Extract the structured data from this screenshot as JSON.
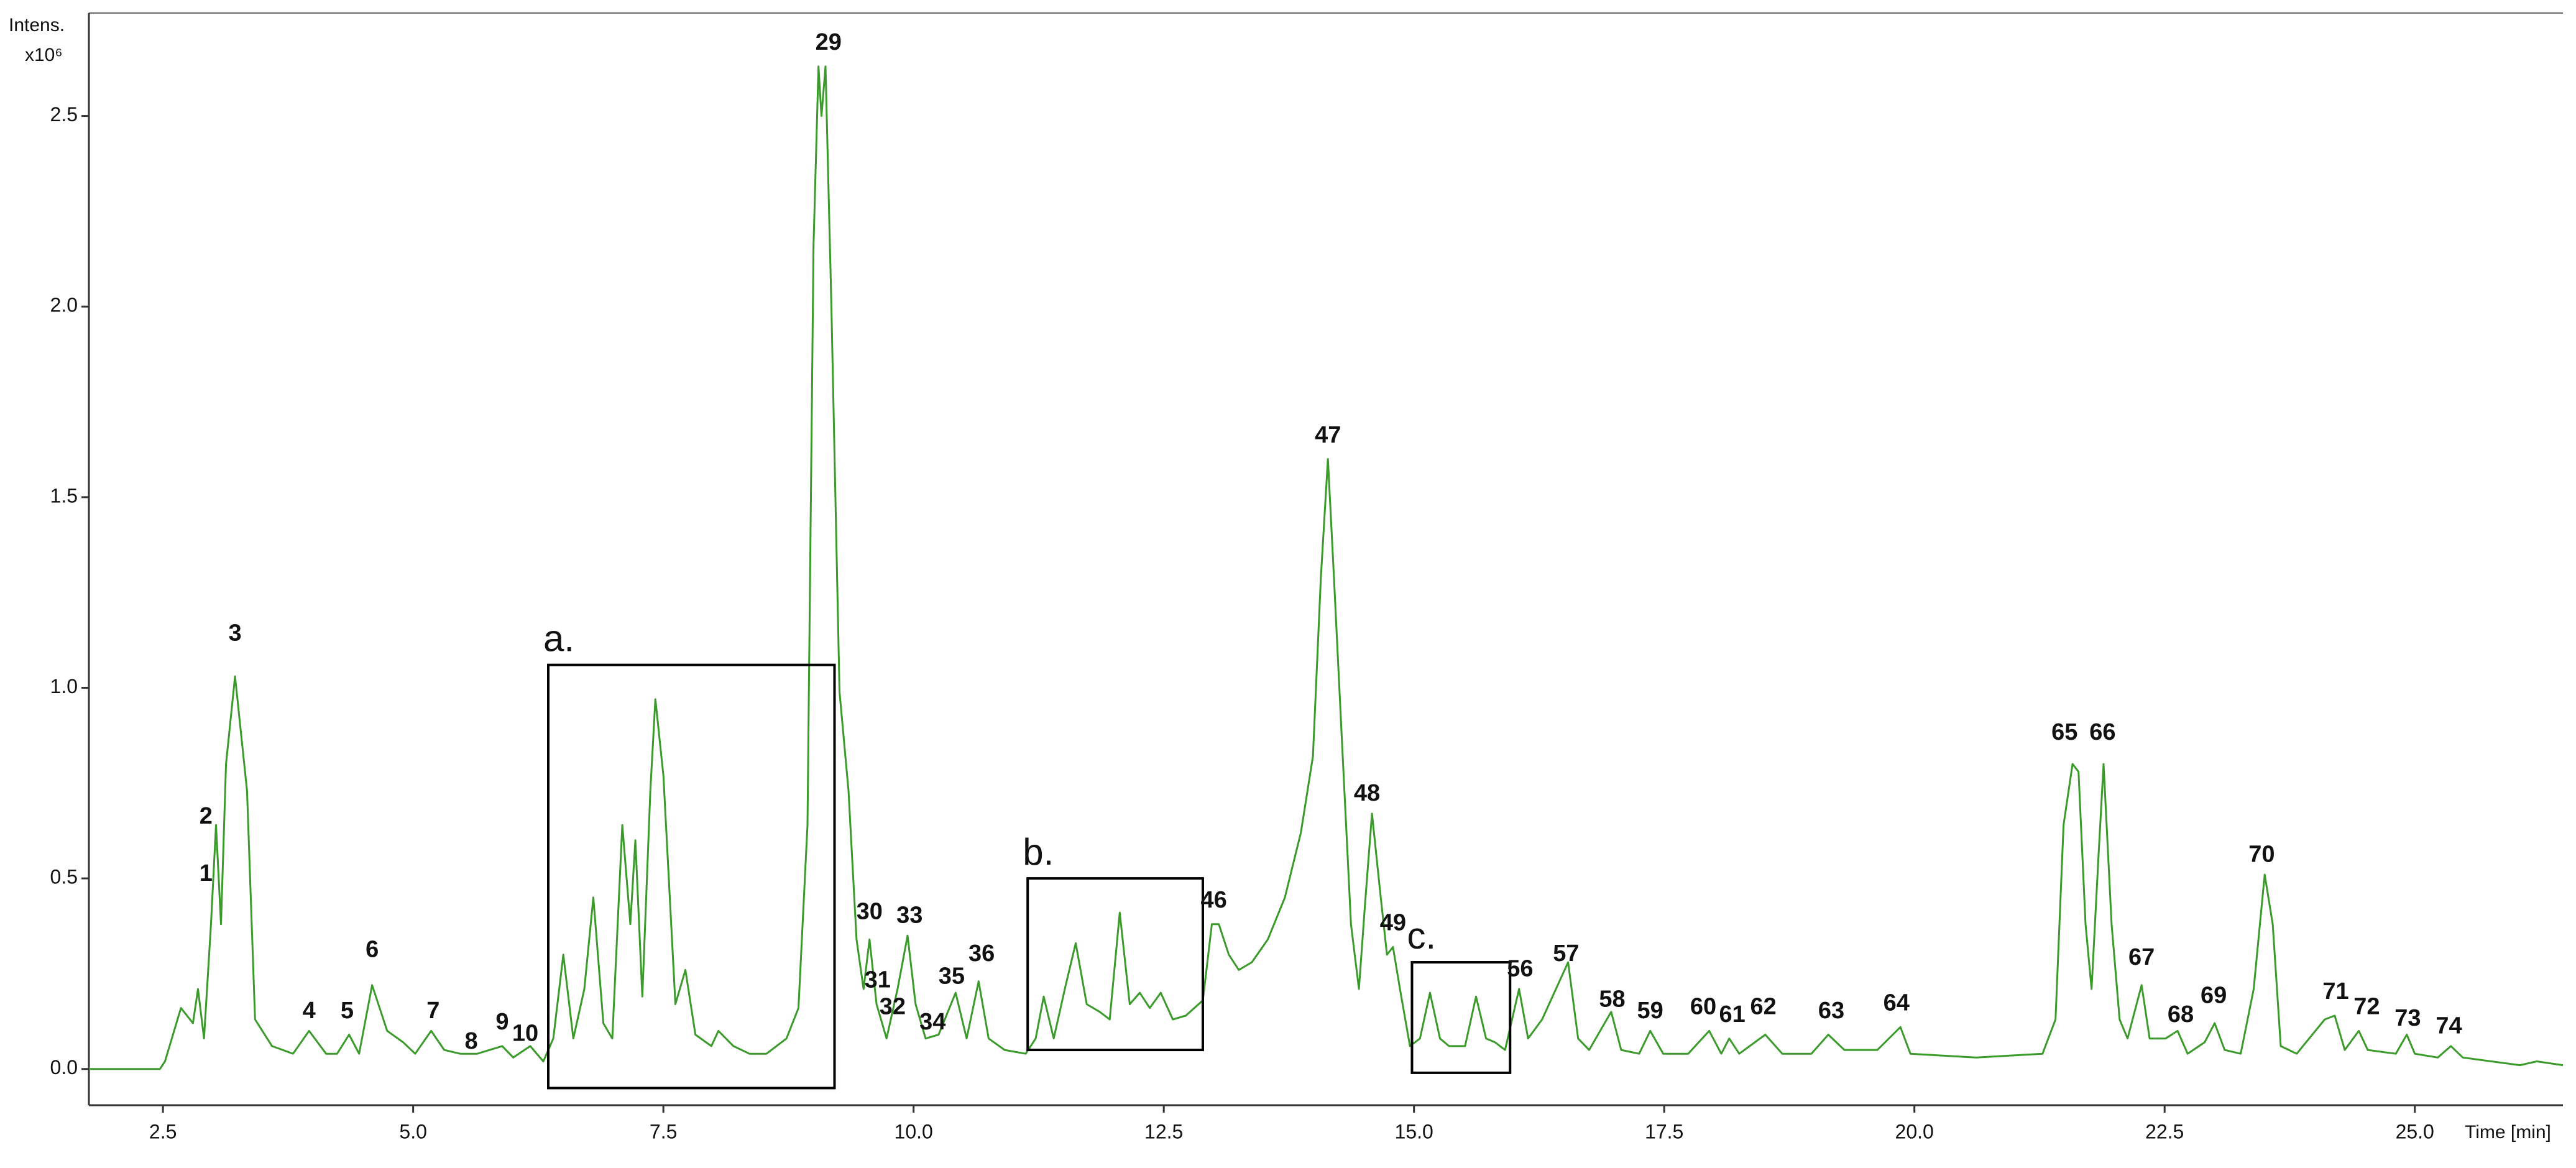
{
  "chart_data": {
    "type": "line",
    "y_label": "Intens.",
    "y_scale": "x10⁶",
    "x_label": "Time [min]",
    "color": "#3a9a2a",
    "xlim": [
      1.76,
      26.48
    ],
    "ylim": [
      -0.095,
      2.77
    ],
    "xticks": [
      2.5,
      {
        "value": 5,
        "label": "5.0"
      },
      7.5,
      {
        "value": 10,
        "label": "10.0"
      },
      12.5,
      {
        "value": 15,
        "label": "15.0"
      },
      17.5,
      {
        "value": 20,
        "label": "20.0"
      },
      22.5,
      {
        "value": 25,
        "label": "25.0"
      }
    ],
    "yticks": [
      {
        "value": 0,
        "label": "0.0"
      },
      0.5,
      {
        "value": 1,
        "label": "1.0"
      },
      1.5,
      {
        "value": 2,
        "label": "2.0"
      },
      2.5
    ],
    "x": [
      1.76,
      2.47,
      2.52,
      2.68,
      2.8,
      2.85,
      2.91,
      2.98,
      3.03,
      3.08,
      3.13,
      3.22,
      3.34,
      3.42,
      3.59,
      3.8,
      3.96,
      4.13,
      4.24,
      4.36,
      4.46,
      4.59,
      4.74,
      4.9,
      5.02,
      5.18,
      5.31,
      5.47,
      5.64,
      5.89,
      6.0,
      6.17,
      6.3,
      6.4,
      6.5,
      6.6,
      6.71,
      6.8,
      6.9,
      6.99,
      7.09,
      7.17,
      7.22,
      7.29,
      7.37,
      7.42,
      7.5,
      7.62,
      7.72,
      7.82,
      7.98,
      8.05,
      8.2,
      8.36,
      8.53,
      8.73,
      8.85,
      8.94,
      9.0,
      9.05,
      9.08,
      9.12,
      9.18,
      9.26,
      9.35,
      9.43,
      9.5,
      9.56,
      9.63,
      9.73,
      9.84,
      9.94,
      10.02,
      10.12,
      10.25,
      10.42,
      10.53,
      10.65,
      10.75,
      10.91,
      11.12,
      11.22,
      11.3,
      11.4,
      11.52,
      11.62,
      11.73,
      11.86,
      11.96,
      12.06,
      12.16,
      12.26,
      12.36,
      12.47,
      12.59,
      12.72,
      12.89,
      12.98,
      13.05,
      13.15,
      13.25,
      13.38,
      13.54,
      13.71,
      13.87,
      13.99,
      14.07,
      14.14,
      14.2,
      14.28,
      14.37,
      14.45,
      14.51,
      14.58,
      14.66,
      14.73,
      14.79,
      14.86,
      14.96,
      15.06,
      15.16,
      15.26,
      15.35,
      15.51,
      15.62,
      15.72,
      15.81,
      15.91,
      16.05,
      16.14,
      16.28,
      16.54,
      16.64,
      16.75,
      16.97,
      17.07,
      17.25,
      17.36,
      17.49,
      17.74,
      17.95,
      18.07,
      18.15,
      18.25,
      18.51,
      18.68,
      18.97,
      19.14,
      19.3,
      19.63,
      19.86,
      19.96,
      20.62,
      21.28,
      21.41,
      21.49,
      21.58,
      21.64,
      21.71,
      21.77,
      21.84,
      21.89,
      21.97,
      22.05,
      22.13,
      22.27,
      22.35,
      22.51,
      22.63,
      22.73,
      22.9,
      23.0,
      23.1,
      23.26,
      23.39,
      23.5,
      23.58,
      23.66,
      23.82,
      24.1,
      24.2,
      24.3,
      24.44,
      24.53,
      24.81,
      24.92,
      25.0,
      25.23,
      25.36,
      25.48,
      26.05,
      26.22,
      26.48
    ],
    "values": [
      0,
      0,
      0.02,
      0.16,
      0.12,
      0.21,
      0.08,
      0.38,
      0.64,
      0.38,
      0.8,
      1.03,
      0.73,
      0.13,
      0.06,
      0.04,
      0.1,
      0.04,
      0.04,
      0.09,
      0.04,
      0.22,
      0.1,
      0.07,
      0.04,
      0.1,
      0.05,
      0.04,
      0.04,
      0.06,
      0.03,
      0.06,
      0.02,
      0.08,
      0.3,
      0.08,
      0.21,
      0.45,
      0.12,
      0.08,
      0.64,
      0.38,
      0.6,
      0.19,
      0.73,
      0.97,
      0.77,
      0.17,
      0.26,
      0.09,
      0.06,
      0.1,
      0.06,
      0.04,
      0.04,
      0.08,
      0.16,
      0.64,
      2.16,
      2.63,
      2.5,
      2.63,
      1.99,
      0.99,
      0.73,
      0.34,
      0.21,
      0.34,
      0.17,
      0.08,
      0.21,
      0.35,
      0.17,
      0.08,
      0.09,
      0.2,
      0.08,
      0.23,
      0.08,
      0.05,
      0.04,
      0.08,
      0.19,
      0.08,
      0.22,
      0.33,
      0.17,
      0.15,
      0.13,
      0.41,
      0.17,
      0.2,
      0.16,
      0.2,
      0.13,
      0.14,
      0.18,
      0.38,
      0.38,
      0.3,
      0.26,
      0.28,
      0.34,
      0.45,
      0.62,
      0.82,
      1.29,
      1.6,
      1.29,
      0.86,
      0.38,
      0.21,
      0.43,
      0.67,
      0.47,
      0.3,
      0.32,
      0.21,
      0.06,
      0.08,
      0.2,
      0.08,
      0.06,
      0.06,
      0.19,
      0.08,
      0.07,
      0.05,
      0.21,
      0.08,
      0.13,
      0.28,
      0.08,
      0.05,
      0.15,
      0.05,
      0.04,
      0.1,
      0.04,
      0.04,
      0.1,
      0.04,
      0.08,
      0.04,
      0.09,
      0.04,
      0.04,
      0.09,
      0.05,
      0.05,
      0.11,
      0.04,
      0.03,
      0.04,
      0.13,
      0.64,
      0.8,
      0.78,
      0.38,
      0.21,
      0.56,
      0.8,
      0.38,
      0.13,
      0.08,
      0.22,
      0.08,
      0.08,
      0.1,
      0.04,
      0.07,
      0.12,
      0.05,
      0.04,
      0.21,
      0.51,
      0.38,
      0.06,
      0.04,
      0.13,
      0.14,
      0.05,
      0.1,
      0.05,
      0.04,
      0.09,
      0.04,
      0.03,
      0.06,
      0.03,
      0.01,
      0.02,
      0.01
    ],
    "peak_labels": [
      {
        "label": "1",
        "x": 2.93,
        "y": 0.51
      },
      {
        "label": "2",
        "x": 2.93,
        "y": 0.66
      },
      {
        "label": "3",
        "x": 3.22,
        "y": 1.14
      },
      {
        "label": "4",
        "x": 3.96,
        "y": 0.15
      },
      {
        "label": "5",
        "x": 4.34,
        "y": 0.15
      },
      {
        "label": "6",
        "x": 4.59,
        "y": 0.31
      },
      {
        "label": "7",
        "x": 5.2,
        "y": 0.15
      },
      {
        "label": "8",
        "x": 5.58,
        "y": 0.07
      },
      {
        "label": "9",
        "x": 5.89,
        "y": 0.12
      },
      {
        "label": "10",
        "x": 6.12,
        "y": 0.09
      },
      {
        "label": "29",
        "x": 9.15,
        "y": 2.69
      },
      {
        "label": "30",
        "x": 9.56,
        "y": 0.41
      },
      {
        "label": "31",
        "x": 9.64,
        "y": 0.23
      },
      {
        "label": "32",
        "x": 9.79,
        "y": 0.16
      },
      {
        "label": "33",
        "x": 9.96,
        "y": 0.4
      },
      {
        "label": "34",
        "x": 10.19,
        "y": 0.12
      },
      {
        "label": "35",
        "x": 10.38,
        "y": 0.24
      },
      {
        "label": "36",
        "x": 10.68,
        "y": 0.3
      },
      {
        "label": "46",
        "x": 13.0,
        "y": 0.44
      },
      {
        "label": "47",
        "x": 14.14,
        "y": 1.66
      },
      {
        "label": "48",
        "x": 14.53,
        "y": 0.72
      },
      {
        "label": "49",
        "x": 14.79,
        "y": 0.38
      },
      {
        "label": "56",
        "x": 16.06,
        "y": 0.26
      },
      {
        "label": "57",
        "x": 16.52,
        "y": 0.3
      },
      {
        "label": "58",
        "x": 16.98,
        "y": 0.18
      },
      {
        "label": "59",
        "x": 17.36,
        "y": 0.15
      },
      {
        "label": "60",
        "x": 17.89,
        "y": 0.16
      },
      {
        "label": "61",
        "x": 18.18,
        "y": 0.14
      },
      {
        "label": "62",
        "x": 18.49,
        "y": 0.16
      },
      {
        "label": "63",
        "x": 19.17,
        "y": 0.15
      },
      {
        "label": "64",
        "x": 19.82,
        "y": 0.17
      },
      {
        "label": "65",
        "x": 21.5,
        "y": 0.88
      },
      {
        "label": "66",
        "x": 21.88,
        "y": 0.88
      },
      {
        "label": "67",
        "x": 22.27,
        "y": 0.29
      },
      {
        "label": "68",
        "x": 22.66,
        "y": 0.14
      },
      {
        "label": "69",
        "x": 22.99,
        "y": 0.19
      },
      {
        "label": "70",
        "x": 23.47,
        "y": 0.56
      },
      {
        "label": "71",
        "x": 24.21,
        "y": 0.2
      },
      {
        "label": "72",
        "x": 24.52,
        "y": 0.16
      },
      {
        "label": "73",
        "x": 24.93,
        "y": 0.13
      },
      {
        "label": "74",
        "x": 25.34,
        "y": 0.11
      }
    ],
    "boxes": [
      {
        "label": "a.",
        "x": [
          6.35,
          9.21
        ],
        "y": [
          -0.05,
          1.06
        ]
      },
      {
        "label": "b.",
        "x": [
          11.14,
          12.89
        ],
        "y": [
          0.05,
          0.5
        ]
      },
      {
        "label": "c.",
        "x": [
          14.98,
          15.96
        ],
        "y": [
          -0.01,
          0.28
        ]
      }
    ]
  }
}
